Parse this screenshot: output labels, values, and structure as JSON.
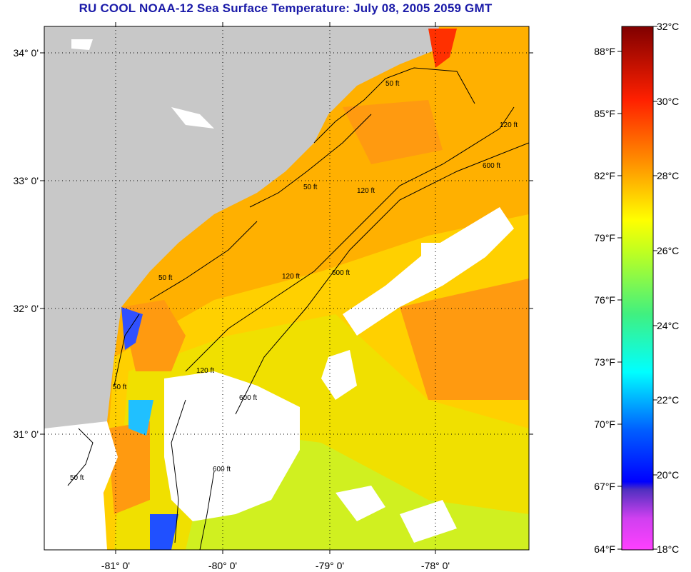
{
  "title": "RU COOL  NOAA-12  Sea Surface Temperature:  July 08, 2005 2059 GMT",
  "map": {
    "latitude_labels": [
      "34° 0'",
      "33° 0'",
      "32° 0'",
      "31° 0'"
    ],
    "longitude_labels": [
      "-81° 0'",
      "-80° 0'",
      "-79° 0'",
      "-78° 0'"
    ],
    "contour_labels": [
      "50 ft",
      "50 ft",
      "50 ft",
      "50 ft",
      "50 ft",
      "120 ft",
      "120 ft",
      "120 ft",
      "120 ft",
      "600 ft",
      "600 ft",
      "600 ft",
      "600 ft"
    ],
    "colors": {
      "land": "#c8c8c8",
      "cloud": "#ffffff",
      "water_warm": "#ff9a10",
      "water_mid": "#ffd200",
      "water_cool": "#c8f020"
    }
  },
  "colorbar": {
    "fahrenheit_labels": [
      "88°F",
      "85°F",
      "82°F",
      "79°F",
      "76°F",
      "73°F",
      "70°F",
      "67°F",
      "64°F"
    ],
    "celsius_labels": [
      "32°C",
      "30°C",
      "28°C",
      "26°C",
      "24°C",
      "22°C",
      "20°C",
      "18°C"
    ],
    "range_celsius": [
      18,
      32
    ]
  }
}
